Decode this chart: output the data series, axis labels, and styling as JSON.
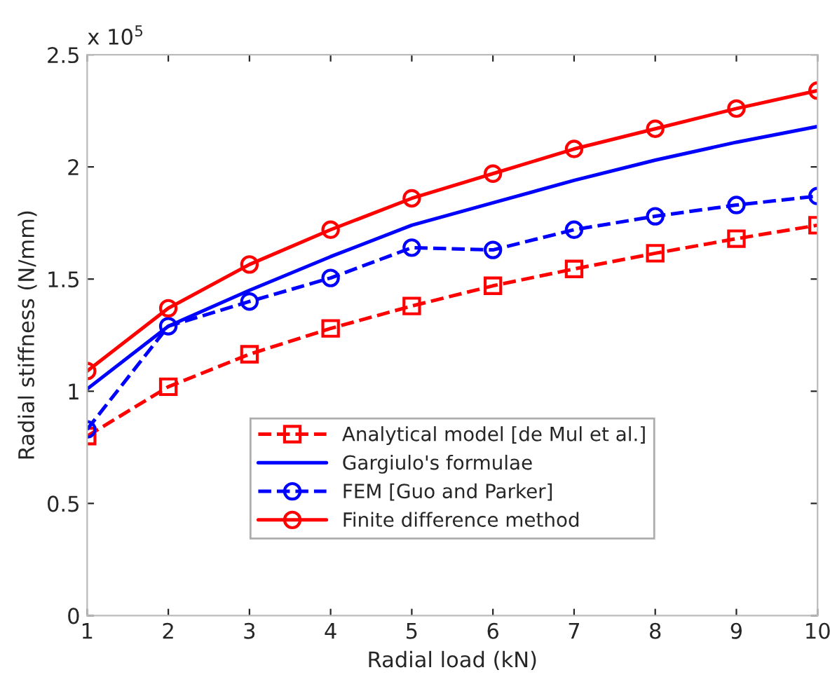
{
  "chart_data": {
    "type": "line",
    "xlabel": "Radial load (kN)",
    "ylabel": "Radial stiffness (N/mm)",
    "annotations": [
      "x 10$^{5}$"
    ],
    "x": [
      1,
      2,
      3,
      4,
      5,
      6,
      7,
      8,
      9,
      10
    ],
    "series": [
      {
        "name": "Analytical model [de Mul et al.]",
        "color": "#ff0000",
        "marker": "square",
        "line_style": "dashed",
        "values": [
          0.8,
          1.02,
          1.165,
          1.28,
          1.38,
          1.47,
          1.545,
          1.615,
          1.68,
          1.74
        ]
      },
      {
        "name": "Gargiulo's formulae",
        "color": "#0000ff",
        "marker": "none",
        "line_style": "solid",
        "values": [
          1.01,
          1.29,
          1.45,
          1.6,
          1.74,
          1.84,
          1.94,
          2.03,
          2.11,
          2.18
        ]
      },
      {
        "name": "FEM [Guo and Parker]",
        "color": "#0000ff",
        "marker": "circle",
        "line_style": "dashed",
        "values": [
          0.83,
          1.29,
          1.4,
          1.505,
          1.64,
          1.63,
          1.72,
          1.78,
          1.83,
          1.87
        ]
      },
      {
        "name": "Finite difference method",
        "color": "#ff0000",
        "marker": "circle",
        "line_style": "solid",
        "values": [
          1.09,
          1.37,
          1.565,
          1.72,
          1.86,
          1.97,
          2.08,
          2.17,
          2.26,
          2.34
        ]
      }
    ],
    "xlim": [
      1,
      10
    ],
    "xticks": [
      1,
      2,
      3,
      4,
      5,
      6,
      7,
      8,
      9,
      10
    ],
    "ylim": [
      0,
      2.5
    ],
    "yticks": [
      0,
      0.5,
      1,
      1.5,
      2,
      2.5
    ],
    "grid": false,
    "legend": "bottom"
  }
}
